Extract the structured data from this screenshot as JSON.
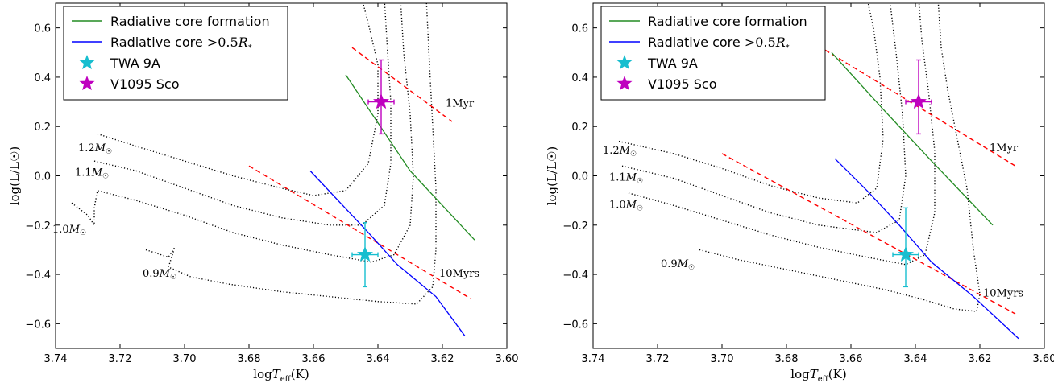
{
  "chart_data": [
    {
      "type": "line",
      "x_axis": {
        "label": "logT_eff(K)",
        "range": [
          3.74,
          3.6
        ],
        "inverted": true,
        "ticks": [
          "3.74",
          "3.72",
          "3.70",
          "3.68",
          "3.66",
          "3.64",
          "3.62",
          "3.60"
        ]
      },
      "y_axis": {
        "label": "log(L/L☉)",
        "range": [
          -0.7,
          0.7
        ],
        "ticks": [
          "−0.6",
          "−0.4",
          "−0.2",
          "0.0",
          "0.2",
          "0.4",
          "0.6"
        ]
      },
      "grid": false,
      "legend_position": "top-left",
      "legend": [
        {
          "label": "Radiative core formation",
          "kind": "line",
          "color": "#228b22"
        },
        {
          "label": "Radiative core >0.5R*",
          "kind": "line",
          "color": "#0000ff"
        },
        {
          "label": "TWA 9A",
          "kind": "star",
          "color": "#17becf"
        },
        {
          "label": "V1095 Sco",
          "kind": "star",
          "color": "#bf00bf"
        }
      ],
      "series": [
        {
          "kind": "track",
          "color": "#000000",
          "points": [
            [
              3.727,
              0.17
            ],
            [
              3.715,
              0.12
            ],
            [
              3.7,
              0.06
            ],
            [
              3.685,
              0.0
            ],
            [
              3.67,
              -0.05
            ],
            [
              3.66,
              -0.08
            ],
            [
              3.65,
              -0.06
            ],
            [
              3.643,
              0.05
            ],
            [
              3.64,
              0.25
            ],
            [
              3.64,
              0.45
            ],
            [
              3.643,
              0.62
            ],
            [
              3.645,
              0.72
            ]
          ]
        },
        {
          "kind": "track",
          "color": "#000000",
          "points": [
            [
              3.728,
              0.06
            ],
            [
              3.715,
              0.02
            ],
            [
              3.7,
              -0.05
            ],
            [
              3.685,
              -0.12
            ],
            [
              3.67,
              -0.17
            ],
            [
              3.655,
              -0.2
            ],
            [
              3.645,
              -0.2
            ],
            [
              3.638,
              -0.12
            ],
            [
              3.636,
              0.05
            ],
            [
              3.636,
              0.3
            ],
            [
              3.637,
              0.5
            ],
            [
              3.638,
              0.72
            ]
          ]
        },
        {
          "kind": "track",
          "color": "#000000",
          "points": [
            [
              3.735,
              -0.11
            ],
            [
              3.73,
              -0.16
            ],
            [
              3.728,
              -0.2
            ],
            [
              3.728,
              -0.13
            ],
            [
              3.727,
              -0.06
            ],
            [
              3.715,
              -0.1
            ],
            [
              3.7,
              -0.16
            ],
            [
              3.685,
              -0.23
            ],
            [
              3.67,
              -0.28
            ],
            [
              3.655,
              -0.32
            ],
            [
              3.642,
              -0.35
            ],
            [
              3.635,
              -0.32
            ],
            [
              3.63,
              -0.2
            ],
            [
              3.629,
              0.0
            ],
            [
              3.63,
              0.25
            ],
            [
              3.632,
              0.5
            ],
            [
              3.633,
              0.72
            ]
          ]
        },
        {
          "kind": "track",
          "color": "#000000",
          "points": [
            [
              3.712,
              -0.3
            ],
            [
              3.705,
              -0.33
            ],
            [
              3.703,
              -0.29
            ],
            [
              3.705,
              -0.37
            ],
            [
              3.698,
              -0.41
            ],
            [
              3.686,
              -0.44
            ],
            [
              3.67,
              -0.47
            ],
            [
              3.655,
              -0.49
            ],
            [
              3.64,
              -0.51
            ],
            [
              3.628,
              -0.52
            ],
            [
              3.623,
              -0.45
            ],
            [
              3.622,
              -0.3
            ],
            [
              3.622,
              -0.05
            ],
            [
              3.623,
              0.2
            ],
            [
              3.624,
              0.45
            ],
            [
              3.625,
              0.72
            ]
          ]
        },
        {
          "kind": "isochrone",
          "color": "#ff0000",
          "points": [
            [
              3.648,
              0.52
            ],
            [
              3.617,
              0.22
            ]
          ]
        },
        {
          "kind": "isochrone",
          "color": "#ff0000",
          "points": [
            [
              3.68,
              0.04
            ],
            [
              3.611,
              -0.5
            ]
          ]
        },
        {
          "kind": "core",
          "color": "#228b22",
          "points": [
            [
              3.65,
              0.41
            ],
            [
              3.63,
              0.02
            ],
            [
              3.61,
              -0.26
            ]
          ]
        },
        {
          "kind": "core",
          "color": "#0000ff",
          "points": [
            [
              3.661,
              0.02
            ],
            [
              3.643,
              -0.23
            ],
            [
              3.634,
              -0.36
            ],
            [
              3.622,
              -0.49
            ],
            [
              3.613,
              -0.65
            ]
          ]
        }
      ],
      "stars": [
        {
          "name": "TWA 9A",
          "color": "#17becf",
          "x": 3.644,
          "y": -0.32,
          "xerr": 0.004,
          "yerr": [
            0.13,
            0.13
          ]
        },
        {
          "name": "V1095 Sco",
          "color": "#bf00bf",
          "x": 3.639,
          "y": 0.3,
          "xerr": 0.004,
          "yerr": [
            0.13,
            0.17
          ]
        }
      ],
      "annotations": [
        {
          "text": "1.2M☉",
          "x": 3.733,
          "y": 0.1
        },
        {
          "text": "1.1M☉",
          "x": 3.734,
          "y": 0.0
        },
        {
          "text": "1.0M☉",
          "x": 3.741,
          "y": -0.23
        },
        {
          "text": "0.9M☉",
          "x": 3.713,
          "y": -0.41
        },
        {
          "text": "1Myr",
          "x": 3.619,
          "y": 0.28
        },
        {
          "text": "10Myrs",
          "x": 3.621,
          "y": -0.41
        }
      ]
    },
    {
      "type": "line",
      "x_axis": {
        "label": "logT_eff(K)",
        "range": [
          3.74,
          3.6
        ],
        "inverted": true,
        "ticks": [
          "3.74",
          "3.72",
          "3.70",
          "3.68",
          "3.66",
          "3.64",
          "3.62",
          "3.60"
        ]
      },
      "y_axis": {
        "label": "log(L/L☉)",
        "range": [
          -0.7,
          0.7
        ],
        "ticks": [
          "−0.6",
          "−0.4",
          "−0.2",
          "0.0",
          "0.2",
          "0.4",
          "0.6"
        ]
      },
      "grid": false,
      "legend_position": "top-left",
      "legend": [
        {
          "label": "Radiative core formation",
          "kind": "line",
          "color": "#228b22"
        },
        {
          "label": "Radiative core >0.5R*",
          "kind": "line",
          "color": "#0000ff"
        },
        {
          "label": "TWA 9A",
          "kind": "star",
          "color": "#17becf"
        },
        {
          "label": "V1095 Sco",
          "kind": "star",
          "color": "#bf00bf"
        }
      ],
      "series": [
        {
          "kind": "track",
          "color": "#000000",
          "points": [
            [
              3.732,
              0.14
            ],
            [
              3.715,
              0.09
            ],
            [
              3.7,
              0.03
            ],
            [
              3.685,
              -0.04
            ],
            [
              3.67,
              -0.09
            ],
            [
              3.658,
              -0.11
            ],
            [
              3.652,
              -0.05
            ],
            [
              3.65,
              0.15
            ],
            [
              3.651,
              0.4
            ],
            [
              3.653,
              0.6
            ],
            [
              3.655,
              0.72
            ]
          ]
        },
        {
          "kind": "track",
          "color": "#000000",
          "points": [
            [
              3.731,
              0.04
            ],
            [
              3.715,
              -0.01
            ],
            [
              3.7,
              -0.08
            ],
            [
              3.685,
              -0.15
            ],
            [
              3.67,
              -0.2
            ],
            [
              3.652,
              -0.23
            ],
            [
              3.645,
              -0.18
            ],
            [
              3.643,
              0.0
            ],
            [
              3.644,
              0.25
            ],
            [
              3.646,
              0.5
            ],
            [
              3.648,
              0.72
            ]
          ]
        },
        {
          "kind": "track",
          "color": "#000000",
          "points": [
            [
              3.729,
              -0.07
            ],
            [
              3.715,
              -0.12
            ],
            [
              3.7,
              -0.18
            ],
            [
              3.685,
              -0.24
            ],
            [
              3.67,
              -0.29
            ],
            [
              3.655,
              -0.33
            ],
            [
              3.643,
              -0.36
            ],
            [
              3.637,
              -0.32
            ],
            [
              3.634,
              -0.15
            ],
            [
              3.634,
              0.1
            ],
            [
              3.636,
              0.35
            ],
            [
              3.638,
              0.55
            ],
            [
              3.639,
              0.72
            ]
          ]
        },
        {
          "kind": "track",
          "color": "#000000",
          "points": [
            [
              3.707,
              -0.3
            ],
            [
              3.695,
              -0.34
            ],
            [
              3.68,
              -0.38
            ],
            [
              3.665,
              -0.42
            ],
            [
              3.65,
              -0.46
            ],
            [
              3.638,
              -0.5
            ],
            [
              3.628,
              -0.54
            ],
            [
              3.621,
              -0.55
            ],
            [
              3.62,
              -0.48
            ],
            [
              3.622,
              -0.3
            ],
            [
              3.624,
              -0.05
            ],
            [
              3.627,
              0.15
            ],
            [
              3.63,
              0.35
            ],
            [
              3.632,
              0.52
            ],
            [
              3.633,
              0.72
            ]
          ]
        },
        {
          "kind": "isochrone",
          "color": "#ff0000",
          "points": [
            [
              3.668,
              0.51
            ],
            [
              3.609,
              0.04
            ]
          ]
        },
        {
          "kind": "isochrone",
          "color": "#ff0000",
          "points": [
            [
              3.7,
              0.09
            ],
            [
              3.609,
              -0.56
            ]
          ]
        },
        {
          "kind": "core",
          "color": "#228b22",
          "points": [
            [
              3.666,
              0.5
            ],
            [
              3.65,
              0.27
            ],
            [
              3.635,
              0.06
            ],
            [
              3.616,
              -0.2
            ]
          ]
        },
        {
          "kind": "core",
          "color": "#0000ff",
          "points": [
            [
              3.665,
              0.07
            ],
            [
              3.655,
              -0.06
            ],
            [
              3.645,
              -0.2
            ],
            [
              3.635,
              -0.35
            ],
            [
              3.622,
              -0.49
            ],
            [
              3.608,
              -0.66
            ]
          ]
        }
      ],
      "stars": [
        {
          "name": "TWA 9A",
          "color": "#17becf",
          "x": 3.643,
          "y": -0.32,
          "xerr": 0.004,
          "yerr": [
            0.13,
            0.19
          ]
        },
        {
          "name": "V1095 Sco",
          "color": "#bf00bf",
          "x": 3.639,
          "y": 0.3,
          "xerr": 0.004,
          "yerr": [
            0.13,
            0.17
          ]
        }
      ],
      "annotations": [
        {
          "text": "1.2M☉",
          "x": 3.737,
          "y": 0.09
        },
        {
          "text": "1.1M☉",
          "x": 3.735,
          "y": -0.02
        },
        {
          "text": "1.0M☉",
          "x": 3.735,
          "y": -0.13
        },
        {
          "text": "0.9M☉",
          "x": 3.719,
          "y": -0.37
        },
        {
          "text": "1Myr",
          "x": 3.617,
          "y": 0.1
        },
        {
          "text": "10Myrs",
          "x": 3.619,
          "y": -0.49
        }
      ]
    }
  ]
}
